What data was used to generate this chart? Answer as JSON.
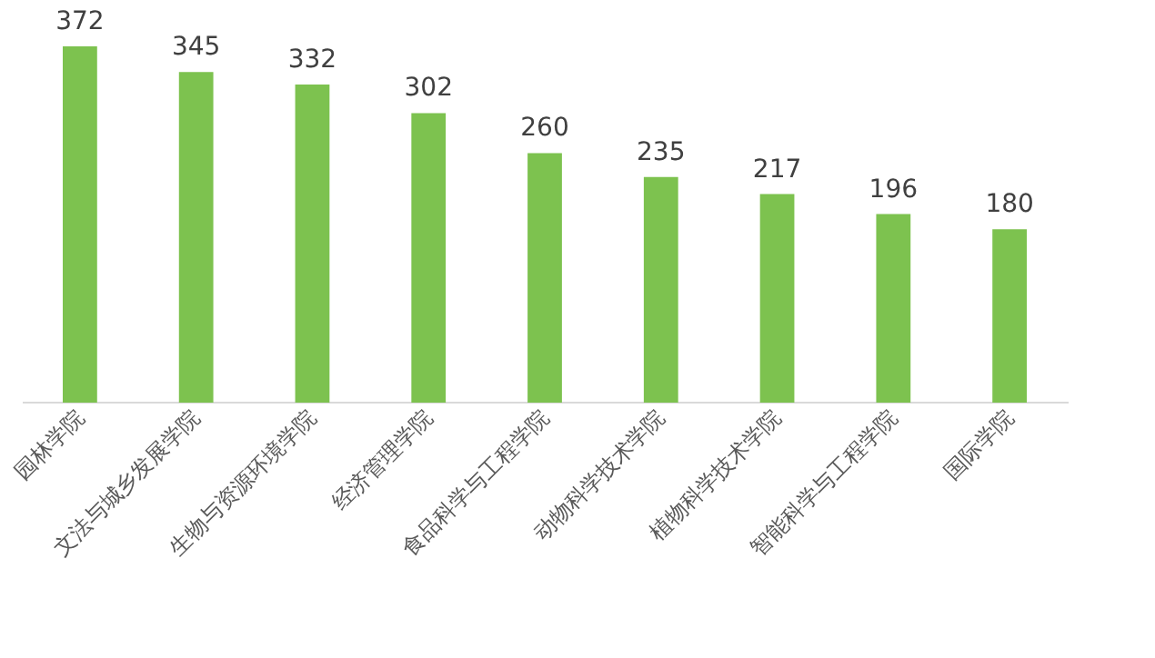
{
  "chart_data": {
    "type": "bar",
    "categories": [
      "园林学院",
      "文法与城乡发展学院",
      "生物与资源环境学院",
      "经济管理学院",
      "食品科学与工程学院",
      "动物科学技术学院",
      "植物科学技术学院",
      "智能科学与工程学院",
      "国际学院"
    ],
    "values": [
      372,
      345,
      332,
      302,
      260,
      235,
      217,
      196,
      180
    ],
    "color": "#7dc24f",
    "data_labels": true
  }
}
